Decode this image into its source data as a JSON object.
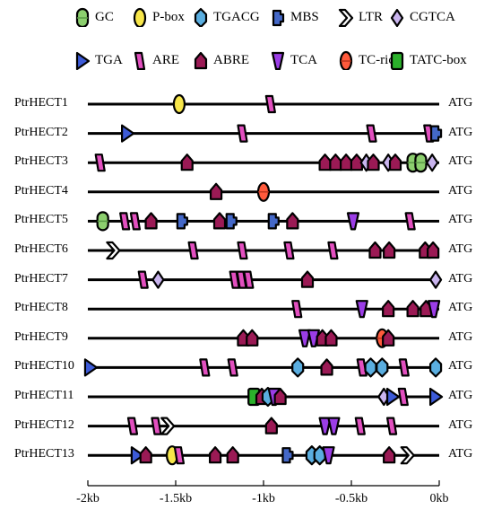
{
  "legend": [
    {
      "key": "GC",
      "label": "GC",
      "color": "#8ccf6e"
    },
    {
      "key": "P-box",
      "label": "P-box",
      "color": "#f7e64a"
    },
    {
      "key": "TGACG",
      "label": "TGACG",
      "color": "#5aaee0"
    },
    {
      "key": "MBS",
      "label": "MBS",
      "color": "#4468c8"
    },
    {
      "key": "LTR",
      "label": "LTR",
      "color": "#ffffff"
    },
    {
      "key": "CGTCA",
      "label": "CGTCA",
      "color": "#c9b4ee"
    },
    {
      "key": "TGA",
      "label": "TGA",
      "color": "#3d5bd8"
    },
    {
      "key": "ARE",
      "label": "ARE",
      "color": "#e24fbf"
    },
    {
      "key": "ABRE",
      "label": "ABRE",
      "color": "#9b1a55"
    },
    {
      "key": "TCA",
      "label": "TCA",
      "color": "#9b3de6"
    },
    {
      "key": "TC-rich",
      "label": "TC-rich",
      "color": "#ff5a3c"
    },
    {
      "key": "TATC-box",
      "label": "TATC-box",
      "color": "#2bb02b"
    }
  ],
  "atg_label": "ATG",
  "axis": {
    "domain": [
      -2000,
      0
    ],
    "ticks": [
      {
        "value": -2000,
        "label": "-2kb"
      },
      {
        "value": -1500,
        "label": "-1.5kb"
      },
      {
        "value": -1000,
        "label": "-1kb"
      },
      {
        "value": -500,
        "label": "-0.5kb"
      },
      {
        "value": 0,
        "label": "0kb"
      }
    ]
  },
  "chart_data": {
    "type": "promoter-element-map",
    "genes": [
      {
        "name": "PtrHECT1",
        "elements": [
          {
            "t": "P-box",
            "pos": -1480
          },
          {
            "t": "ARE",
            "pos": -960
          }
        ]
      },
      {
        "name": "PtrHECT2",
        "elements": [
          {
            "t": "TGA",
            "pos": -1775
          },
          {
            "t": "ARE",
            "pos": -1120
          },
          {
            "t": "ARE",
            "pos": -385
          },
          {
            "t": "ARE",
            "pos": -60
          },
          {
            "t": "MBS",
            "pos": -20
          }
        ]
      },
      {
        "name": "PtrHECT3",
        "elements": [
          {
            "t": "ARE",
            "pos": -1930
          },
          {
            "t": "ABRE",
            "pos": -1435
          },
          {
            "t": "ABRE",
            "pos": -650
          },
          {
            "t": "ABRE",
            "pos": -590
          },
          {
            "t": "ABRE",
            "pos": -530
          },
          {
            "t": "ABRE",
            "pos": -470
          },
          {
            "t": "CGTCA",
            "pos": -415
          },
          {
            "t": "ABRE",
            "pos": -375
          },
          {
            "t": "CGTCA",
            "pos": -290
          },
          {
            "t": "ABRE",
            "pos": -250
          },
          {
            "t": "GC",
            "pos": -150
          },
          {
            "t": "GC",
            "pos": -105
          },
          {
            "t": "CGTCA",
            "pos": -40
          }
        ]
      },
      {
        "name": "PtrHECT4",
        "elements": [
          {
            "t": "ABRE",
            "pos": -1270
          },
          {
            "t": "TC-rich",
            "pos": -1000
          }
        ]
      },
      {
        "name": "PtrHECT5",
        "elements": [
          {
            "t": "GC",
            "pos": -1915
          },
          {
            "t": "ARE",
            "pos": -1790
          },
          {
            "t": "ARE",
            "pos": -1730
          },
          {
            "t": "ABRE",
            "pos": -1640
          },
          {
            "t": "MBS",
            "pos": -1465
          },
          {
            "t": "ABRE",
            "pos": -1250
          },
          {
            "t": "MBS",
            "pos": -1185
          },
          {
            "t": "MBS",
            "pos": -945
          },
          {
            "t": "ABRE",
            "pos": -835
          },
          {
            "t": "TCA",
            "pos": -490
          },
          {
            "t": "ARE",
            "pos": -165
          }
        ]
      },
      {
        "name": "PtrHECT6",
        "elements": [
          {
            "t": "LTR",
            "pos": -1855
          },
          {
            "t": "ARE",
            "pos": -1400
          },
          {
            "t": "ARE",
            "pos": -1120
          },
          {
            "t": "ARE",
            "pos": -855
          },
          {
            "t": "ARE",
            "pos": -605
          },
          {
            "t": "ABRE",
            "pos": -365
          },
          {
            "t": "ABRE",
            "pos": -285
          },
          {
            "t": "ABRE",
            "pos": -80
          },
          {
            "t": "ABRE",
            "pos": -35
          }
        ]
      },
      {
        "name": "PtrHECT7",
        "elements": [
          {
            "t": "ARE",
            "pos": -1685
          },
          {
            "t": "CGTCA",
            "pos": -1600
          },
          {
            "t": "ARE",
            "pos": -1165
          },
          {
            "t": "ARE",
            "pos": -1125
          },
          {
            "t": "ARE",
            "pos": -1085
          },
          {
            "t": "ABRE",
            "pos": -750
          },
          {
            "t": "CGTCA",
            "pos": -20
          }
        ]
      },
      {
        "name": "PtrHECT8",
        "elements": [
          {
            "t": "ARE",
            "pos": -810
          },
          {
            "t": "TCA",
            "pos": -440
          },
          {
            "t": "ABRE",
            "pos": -290
          },
          {
            "t": "ABRE",
            "pos": -150
          },
          {
            "t": "ABRE",
            "pos": -75
          },
          {
            "t": "TCA",
            "pos": -30
          }
        ]
      },
      {
        "name": "PtrHECT9",
        "elements": [
          {
            "t": "ABRE",
            "pos": -1115
          },
          {
            "t": "ABRE",
            "pos": -1065
          },
          {
            "t": "TCA",
            "pos": -765
          },
          {
            "t": "TCA",
            "pos": -715
          },
          {
            "t": "ABRE",
            "pos": -665
          },
          {
            "t": "ABRE",
            "pos": -615
          },
          {
            "t": "TC-rich",
            "pos": -325
          },
          {
            "t": "ABRE",
            "pos": -290
          }
        ]
      },
      {
        "name": "PtrHECT10",
        "elements": [
          {
            "t": "TGA",
            "pos": -1985
          },
          {
            "t": "ARE",
            "pos": -1335
          },
          {
            "t": "ARE",
            "pos": -1175
          },
          {
            "t": "TGACG",
            "pos": -805
          },
          {
            "t": "ABRE",
            "pos": -640
          },
          {
            "t": "ARE",
            "pos": -440
          },
          {
            "t": "TGACG",
            "pos": -390
          },
          {
            "t": "TGACG",
            "pos": -325
          },
          {
            "t": "ARE",
            "pos": -200
          },
          {
            "t": "TGACG",
            "pos": -20
          }
        ]
      },
      {
        "name": "PtrHECT11",
        "elements": [
          {
            "t": "TATC-box",
            "pos": -1055
          },
          {
            "t": "ABRE",
            "pos": -1010
          },
          {
            "t": "TGACG",
            "pos": -975
          },
          {
            "t": "TCA",
            "pos": -940
          },
          {
            "t": "ABRE",
            "pos": -905
          },
          {
            "t": "CGTCA",
            "pos": -315
          },
          {
            "t": "TGA",
            "pos": -265
          },
          {
            "t": "ARE",
            "pos": -205
          },
          {
            "t": "TGA",
            "pos": -20
          }
        ]
      },
      {
        "name": "PtrHECT12",
        "elements": [
          {
            "t": "ARE",
            "pos": -1745
          },
          {
            "t": "ARE",
            "pos": -1610
          },
          {
            "t": "LTR",
            "pos": -1545
          },
          {
            "t": "ABRE",
            "pos": -955
          },
          {
            "t": "TCA",
            "pos": -650
          },
          {
            "t": "TCA",
            "pos": -600
          },
          {
            "t": "ARE",
            "pos": -450
          },
          {
            "t": "ARE",
            "pos": -270
          }
        ]
      },
      {
        "name": "PtrHECT13",
        "elements": [
          {
            "t": "TGA",
            "pos": -1720
          },
          {
            "t": "ABRE",
            "pos": -1670
          },
          {
            "t": "P-box",
            "pos": -1520
          },
          {
            "t": "ARE",
            "pos": -1480
          },
          {
            "t": "ABRE",
            "pos": -1275
          },
          {
            "t": "ABRE",
            "pos": -1175
          },
          {
            "t": "MBS",
            "pos": -865
          },
          {
            "t": "TGACG",
            "pos": -725
          },
          {
            "t": "TGACG",
            "pos": -680
          },
          {
            "t": "TCA",
            "pos": -630
          },
          {
            "t": "ABRE",
            "pos": -285
          },
          {
            "t": "LTR",
            "pos": -180
          }
        ]
      }
    ]
  }
}
